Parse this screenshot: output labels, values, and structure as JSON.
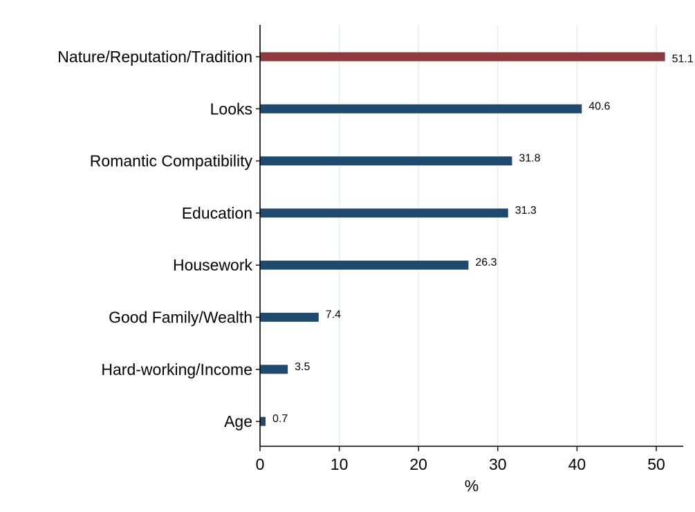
{
  "chart_data": {
    "type": "bar",
    "orientation": "horizontal",
    "categories": [
      "Nature/Reputation/Tradition",
      "Looks",
      "Romantic Compatibility",
      "Education",
      "Housework",
      "Good Family/Wealth",
      "Hard-working/Income",
      "Age"
    ],
    "values": [
      51.1,
      40.6,
      31.8,
      31.3,
      26.3,
      7.4,
      3.5,
      0.7
    ],
    "value_labels": [
      "51.1",
      "40.6",
      "31.8",
      "31.3",
      "26.3",
      "7.4",
      "3.5",
      "0.7"
    ],
    "highlight_index": 0,
    "xlabel": "%",
    "xlim": [
      0,
      53
    ],
    "xticks": [
      0,
      10,
      20,
      30,
      40,
      50
    ],
    "xtick_labels": [
      "0",
      "10",
      "20",
      "30",
      "40",
      "50"
    ],
    "grid": "vertical",
    "colors": {
      "highlight": "#8e3a3e",
      "bar": "#1f4a6e",
      "grid": "#e6eef0"
    }
  }
}
